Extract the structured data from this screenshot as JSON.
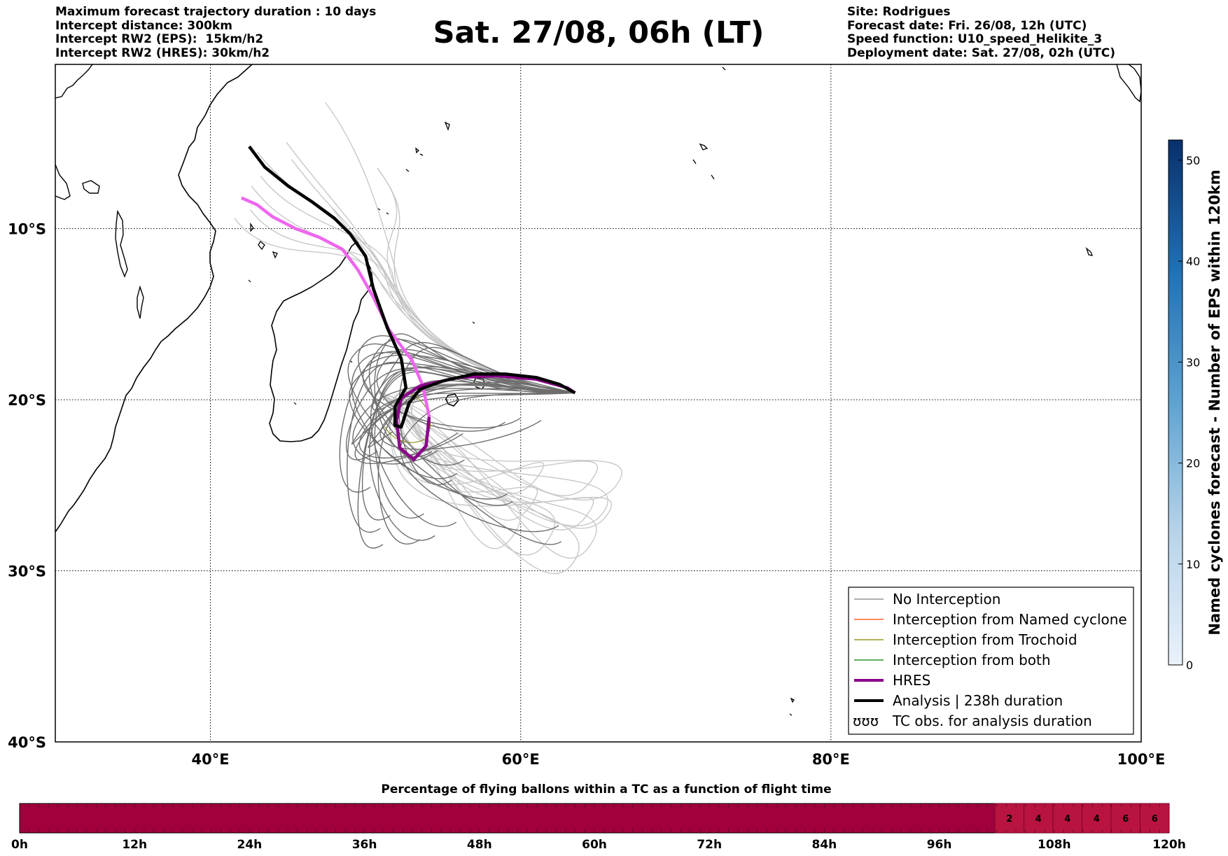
{
  "header": {
    "left_lines": [
      "Maximum forecast trajectory duration : 10 days",
      "Intercept distance: 300km",
      "Intercept RW2 (EPS):  15km/h2",
      "Intercept RW2 (HRES): 30km/h2"
    ],
    "title": "Sat. 27/08, 06h (LT)",
    "right_lines": [
      "Site: Rodrigues",
      "Forecast date: Fri. 26/08, 12h (UTC)",
      "Speed function: U10_speed_Helikite_3",
      "Deployment date: Sat. 27/08, 02h (UTC)"
    ]
  },
  "map": {
    "lon_ticks": [
      "40°E",
      "60°E",
      "80°E",
      "100°E"
    ],
    "lat_ticks": [
      "10°S",
      "20°S",
      "30°S",
      "40°S"
    ],
    "extent": {
      "lon_min": 30,
      "lon_max": 100,
      "lat_min": -40,
      "lat_max": -0.4
    }
  },
  "legend": {
    "items": [
      {
        "label": "No Interception",
        "color": "#808080"
      },
      {
        "label": "Interception from Named cyclone",
        "color": "#ff4500"
      },
      {
        "label": "Interception from Trochoid",
        "color": "#808000"
      },
      {
        "label": "Interception from both",
        "color": "#008000"
      },
      {
        "label": "HRES",
        "color": "#8b008b"
      },
      {
        "label": "Analysis | 238h duration",
        "color": "#000000"
      },
      {
        "label": "TC obs. for analysis duration",
        "symbol": "ʊʊʊ"
      }
    ]
  },
  "colorbar": {
    "title": "Named cyclones forecast - Number of EPS within 120km",
    "ticks": [
      "0",
      "10",
      "20",
      "30",
      "40",
      "50"
    ],
    "min": 0,
    "max": 52,
    "color_low": "#e6eff9",
    "color_high": "#08306b"
  },
  "bottom_bar": {
    "title": "Percentage of flying ballons within a TC as a function of flight time",
    "ticks": [
      "0h",
      "12h",
      "24h",
      "36h",
      "48h",
      "60h",
      "72h",
      "84h",
      "96h",
      "108h",
      "120h"
    ],
    "segment_values": [
      "2",
      "4",
      "4",
      "4",
      "6",
      "6"
    ],
    "base_color": "#a0003c",
    "cell_color": "#b8143f"
  },
  "tracks": {
    "analysis": [
      [
        42.5,
        -5.2
      ],
      [
        43.5,
        -6.4
      ],
      [
        45,
        -7.5
      ],
      [
        46.5,
        -8.4
      ],
      [
        48,
        -9.4
      ],
      [
        49,
        -10.3
      ],
      [
        50,
        -11.6
      ],
      [
        50.5,
        -13.5
      ],
      [
        51.4,
        -15.8
      ],
      [
        52.3,
        -17.6
      ],
      [
        52.6,
        -19.3
      ],
      [
        51.9,
        -20.4
      ],
      [
        51.9,
        -21.5
      ],
      [
        52.3,
        -21.6
      ],
      [
        52.8,
        -20.2
      ],
      [
        53.5,
        -19.4
      ],
      [
        55,
        -18.9
      ],
      [
        57,
        -18.5
      ],
      [
        59,
        -18.5
      ],
      [
        61,
        -18.7
      ],
      [
        62.5,
        -19.1
      ],
      [
        63.5,
        -19.6
      ]
    ],
    "hres": [
      [
        42,
        -8.2
      ],
      [
        43,
        -8.6
      ],
      [
        44,
        -9.3
      ],
      [
        45.5,
        -10.0
      ],
      [
        47,
        -10.5
      ],
      [
        48.5,
        -11.2
      ],
      [
        49.5,
        -12.4
      ],
      [
        50.5,
        -14.0
      ],
      [
        51.5,
        -15.9
      ],
      [
        53,
        -17.7
      ],
      [
        53.7,
        -19.2
      ],
      [
        54.1,
        -21
      ],
      [
        53.9,
        -22.7
      ],
      [
        53.1,
        -23.5
      ],
      [
        52.2,
        -22.8
      ],
      [
        52,
        -21.2
      ],
      [
        52.3,
        -19.9
      ],
      [
        53.5,
        -19.2
      ],
      [
        56,
        -18.7
      ],
      [
        58.5,
        -18.6
      ],
      [
        61,
        -18.8
      ],
      [
        63,
        -19.3
      ],
      [
        63.5,
        -19.6
      ]
    ]
  }
}
